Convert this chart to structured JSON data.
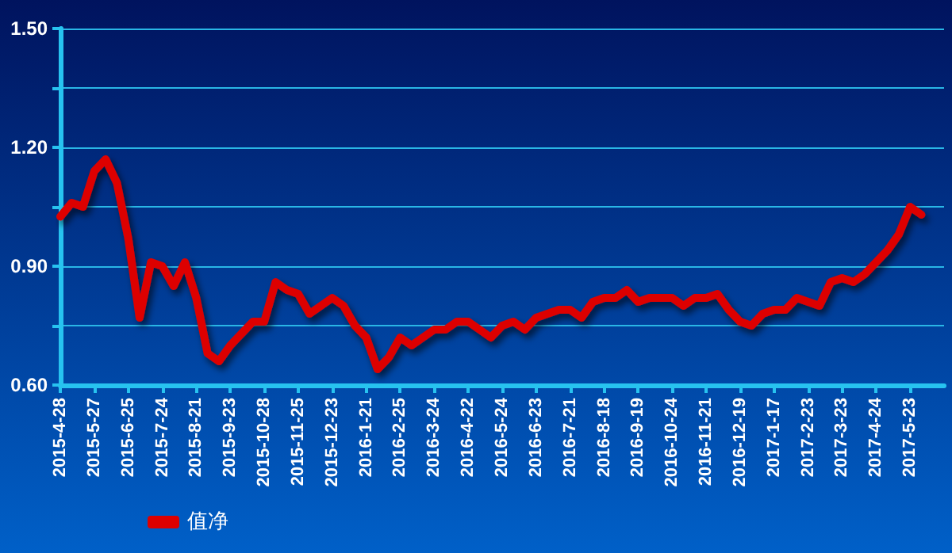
{
  "chart_data": {
    "type": "line",
    "categories": [
      "2015-4-28",
      null,
      null,
      "2015-5-27",
      null,
      null,
      "2015-6-25",
      null,
      null,
      "2015-7-24",
      null,
      null,
      "2015-8-21",
      null,
      null,
      "2015-9-23",
      null,
      null,
      "2015-10-28",
      null,
      null,
      "2015-11-25",
      null,
      null,
      "2015-12-23",
      null,
      null,
      "2016-1-21",
      null,
      null,
      "2016-2-25",
      null,
      null,
      "2016-3-24",
      null,
      null,
      "2016-4-22",
      null,
      null,
      "2016-5-24",
      null,
      null,
      "2016-6-23",
      null,
      null,
      "2016-7-21",
      null,
      null,
      "2016-8-18",
      null,
      null,
      "2016-9-19",
      null,
      null,
      "2016-10-24",
      null,
      null,
      "2016-11-21",
      null,
      null,
      "2016-12-19",
      null,
      null,
      "2017-1-17",
      null,
      null,
      "2017-2-23",
      null,
      null,
      "2017-3-23",
      null,
      null,
      "2017-4-24",
      null,
      null,
      "2017-5-23",
      null,
      null,
      null
    ],
    "series": [
      {
        "name": "值净",
        "color": "#dd0000",
        "values": [
          1.025,
          1.06,
          1.05,
          1.14,
          1.17,
          1.11,
          0.97,
          0.77,
          0.91,
          0.9,
          0.85,
          0.91,
          0.82,
          0.68,
          0.66,
          0.7,
          0.73,
          0.76,
          0.76,
          0.86,
          0.84,
          0.83,
          0.78,
          0.8,
          0.82,
          0.8,
          0.75,
          0.72,
          0.64,
          0.67,
          0.72,
          0.7,
          0.72,
          0.74,
          0.74,
          0.76,
          0.76,
          0.74,
          0.72,
          0.75,
          0.76,
          0.74,
          0.77,
          0.78,
          0.79,
          0.79,
          0.77,
          0.81,
          0.82,
          0.82,
          0.84,
          0.81,
          0.82,
          0.82,
          0.82,
          0.8,
          0.82,
          0.82,
          0.83,
          0.79,
          0.76,
          0.75,
          0.78,
          0.79,
          0.79,
          0.82,
          0.81,
          0.8,
          0.86,
          0.87,
          0.86,
          0.88,
          0.91,
          0.94,
          0.98,
          1.05,
          1.03,
          null,
          null
        ]
      }
    ],
    "ylim": [
      0.6,
      1.5
    ],
    "yticks": [
      {
        "value": 0.6,
        "label": "0.60"
      },
      {
        "value": 0.75,
        "label": null
      },
      {
        "value": 0.9,
        "label": "0.90"
      },
      {
        "value": 1.05,
        "label": null
      },
      {
        "value": 1.2,
        "label": "1.20"
      },
      {
        "value": 1.35,
        "label": null
      },
      {
        "value": 1.5,
        "label": "1.50"
      }
    ],
    "grid": "y",
    "legend": "bottom left",
    "marker": "none",
    "line_style": "solid"
  }
}
